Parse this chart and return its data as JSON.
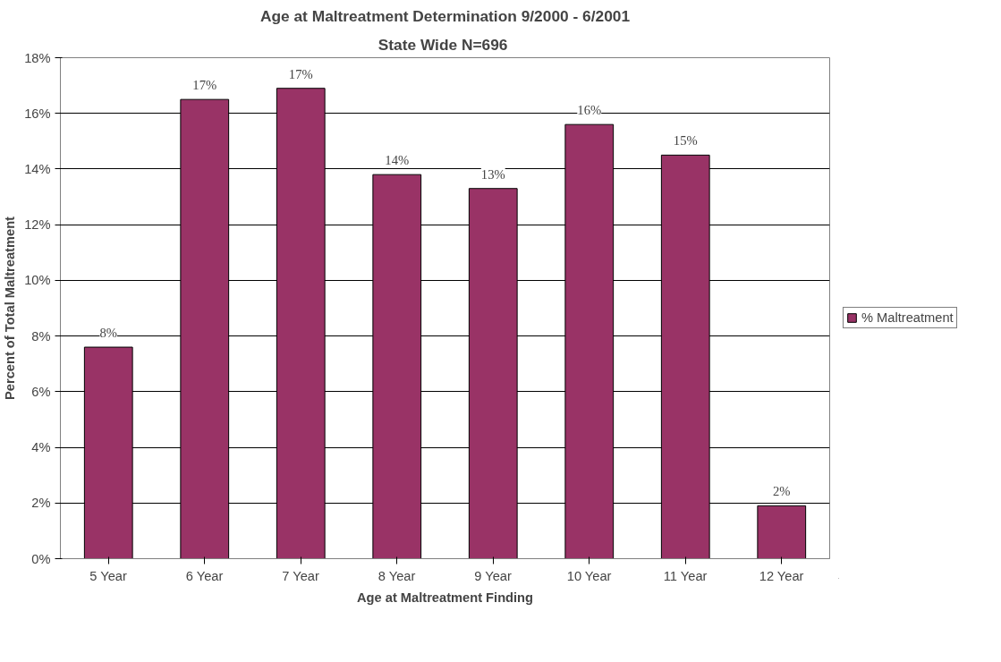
{
  "chart_data": {
    "type": "bar",
    "title": "Age at Maltreatment Determination 9/2000 - 6/2001",
    "subtitle": "State Wide  N=696",
    "xlabel": "Age at Maltreatment Finding",
    "ylabel": "Percent of Total Maltreatment",
    "categories": [
      "5 Year",
      "6 Year",
      "7 Year",
      "8 Year",
      "9 Year",
      "10 Year",
      "11 Year",
      "12 Year"
    ],
    "series": [
      {
        "name": "% Maltreatment",
        "color": "#993366",
        "values": [
          7.6,
          16.5,
          16.9,
          13.8,
          13.3,
          15.6,
          14.5,
          1.9
        ],
        "value_labels": [
          "8%",
          "17%",
          "17%",
          "14%",
          "13%",
          "16%",
          "15%",
          "2%"
        ]
      }
    ],
    "ylim": [
      0,
      18
    ],
    "yticks": [
      {
        "value": 0,
        "label": "0%"
      },
      {
        "value": 2,
        "label": "2%"
      },
      {
        "value": 4,
        "label": "4%"
      },
      {
        "value": 6,
        "label": "6%"
      },
      {
        "value": 8,
        "label": "8%"
      },
      {
        "value": 10,
        "label": "10%"
      },
      {
        "value": 12,
        "label": "12%"
      },
      {
        "value": 14,
        "label": "14%"
      },
      {
        "value": 16,
        "label": "16%"
      },
      {
        "value": 18,
        "label": "18%"
      }
    ],
    "grid": "y",
    "legend": "right"
  }
}
